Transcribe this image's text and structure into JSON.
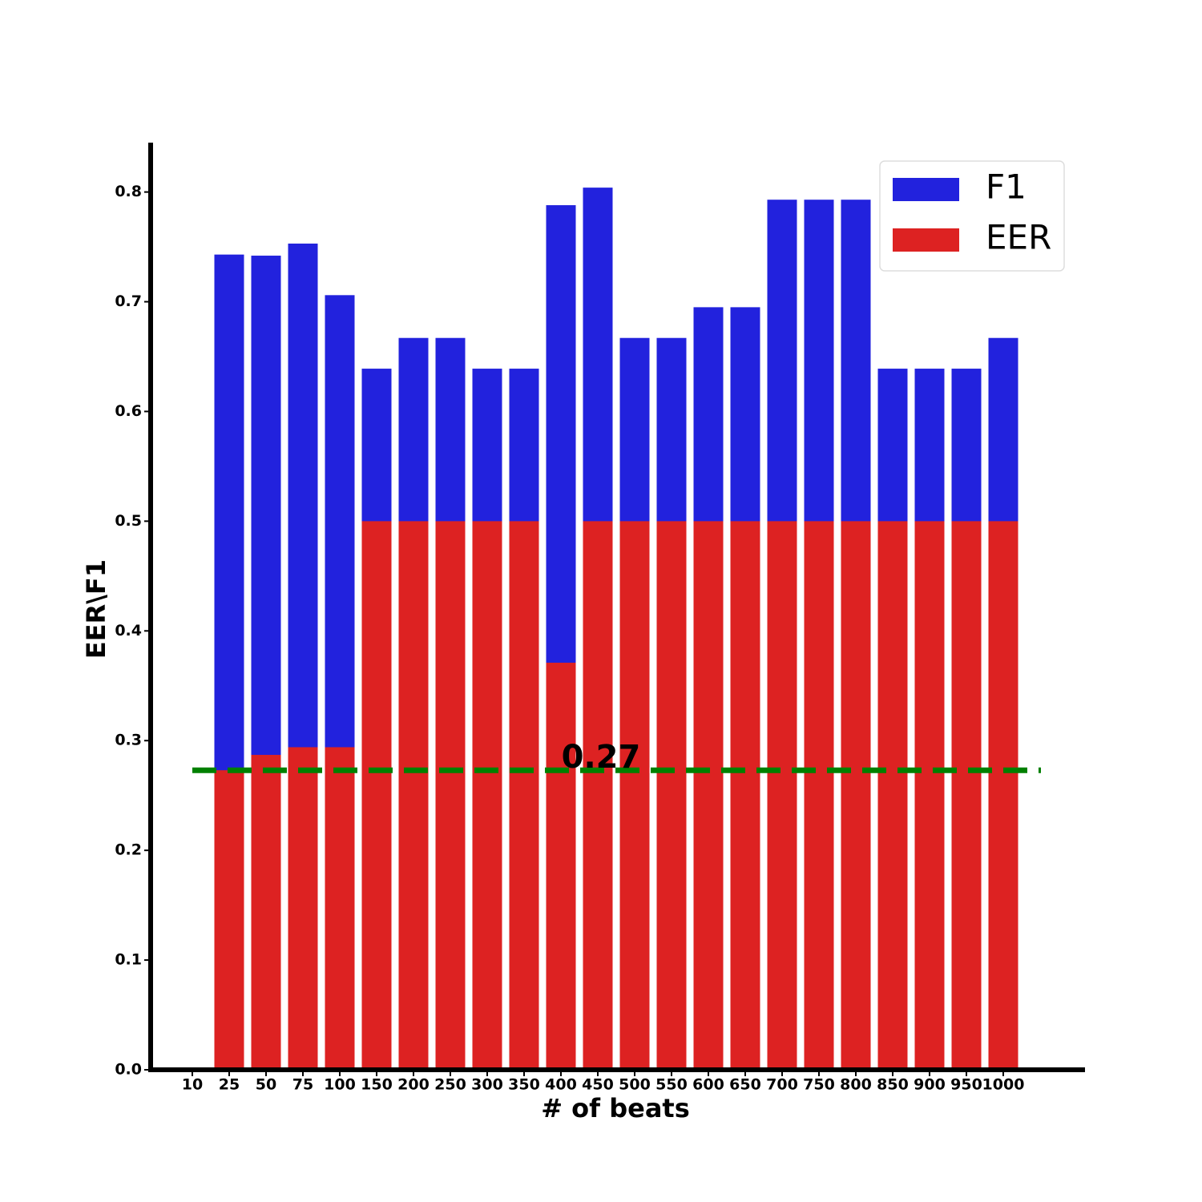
{
  "chart_data": {
    "type": "bar",
    "x_label": "# of beats",
    "y_label": "EER\\F1",
    "categories": [
      "10",
      "25",
      "50",
      "75",
      "100",
      "150",
      "200",
      "250",
      "300",
      "350",
      "400",
      "450",
      "500",
      "550",
      "600",
      "650",
      "700",
      "750",
      "800",
      "850",
      "900",
      "950",
      "1000"
    ],
    "series": [
      {
        "name": "F1",
        "color": "#2222dd",
        "values": [
          0,
          0.743,
          0.742,
          0.753,
          0.706,
          0.639,
          0.667,
          0.667,
          0.639,
          0.639,
          0.788,
          0.804,
          0.667,
          0.667,
          0.695,
          0.695,
          0.793,
          0.793,
          0.793,
          0.639,
          0.639,
          0.639,
          0.667
        ]
      },
      {
        "name": "EER",
        "color": "#dd2222",
        "values": [
          0,
          0.273,
          0.287,
          0.294,
          0.294,
          0.5,
          0.5,
          0.5,
          0.5,
          0.5,
          0.371,
          0.5,
          0.5,
          0.5,
          0.5,
          0.5,
          0.5,
          0.5,
          0.5,
          0.5,
          0.5,
          0.5,
          0.5
        ]
      }
    ],
    "hline": {
      "value": 0.273,
      "label": "0.27",
      "color": "#008000"
    },
    "ylim": [
      0,
      0.845
    ],
    "yticks": [
      {
        "value": 0,
        "label": "0.0"
      },
      0.1,
      0.2,
      0.3,
      0.4,
      0.5,
      0.6,
      0.7,
      0.8
    ],
    "legend": "upper right",
    "grid": false
  }
}
